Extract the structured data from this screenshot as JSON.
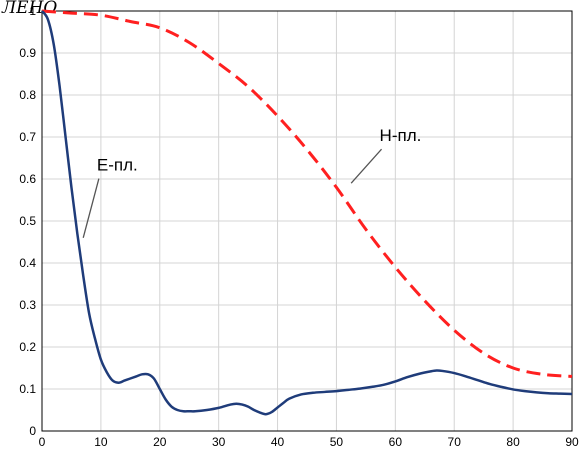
{
  "page_heading_fragment": "ЛЕНО",
  "chart_data": {
    "type": "line",
    "title": "",
    "xlabel": "",
    "ylabel": "",
    "xlim": [
      0,
      90
    ],
    "ylim": [
      0,
      1
    ],
    "xticks": [
      0,
      10,
      20,
      30,
      40,
      50,
      60,
      70,
      80,
      90
    ],
    "yticks": [
      0,
      0.1,
      0.2,
      0.3,
      0.4,
      0.5,
      0.6,
      0.7,
      0.8,
      0.9,
      1
    ],
    "ytick_labels": [
      "0",
      "0.1",
      "0.2",
      "0.3",
      "0.4",
      "0.5",
      "0.6",
      "0.7",
      "0.8",
      "0.9",
      "1"
    ],
    "grid": true,
    "legend": "none",
    "series": [
      {
        "name": "E-пл.",
        "color": "#1f3c7a",
        "style": "solid",
        "x": [
          0,
          1,
          2,
          3,
          4,
          5,
          6,
          7,
          8,
          9,
          10,
          11,
          12,
          13,
          14,
          15,
          16,
          17,
          18,
          19,
          20,
          21,
          22,
          23,
          24,
          25,
          26,
          28,
          30,
          32,
          33,
          34,
          35,
          36,
          37,
          38,
          39,
          40,
          41,
          42,
          44,
          46,
          48,
          50,
          52,
          54,
          56,
          58,
          60,
          62,
          64,
          66,
          67,
          68,
          70,
          72,
          74,
          76,
          78,
          80,
          82,
          84,
          86,
          88,
          90
        ],
        "values": [
          1.0,
          0.98,
          0.92,
          0.82,
          0.7,
          0.58,
          0.47,
          0.37,
          0.28,
          0.22,
          0.17,
          0.14,
          0.12,
          0.115,
          0.12,
          0.125,
          0.13,
          0.135,
          0.135,
          0.125,
          0.1,
          0.075,
          0.058,
          0.05,
          0.047,
          0.047,
          0.047,
          0.05,
          0.055,
          0.063,
          0.065,
          0.063,
          0.058,
          0.05,
          0.044,
          0.04,
          0.045,
          0.056,
          0.067,
          0.077,
          0.087,
          0.091,
          0.093,
          0.095,
          0.098,
          0.101,
          0.105,
          0.11,
          0.118,
          0.128,
          0.136,
          0.142,
          0.144,
          0.143,
          0.138,
          0.13,
          0.121,
          0.112,
          0.105,
          0.099,
          0.095,
          0.092,
          0.09,
          0.089,
          0.088
        ]
      },
      {
        "name": "H-пл.",
        "color": "#ff2020",
        "style": "dashed",
        "x": [
          0,
          5,
          10,
          15,
          20,
          25,
          30,
          35,
          40,
          45,
          50,
          55,
          60,
          65,
          70,
          75,
          80,
          85,
          90
        ],
        "values": [
          1.0,
          0.995,
          0.99,
          0.975,
          0.96,
          0.925,
          0.875,
          0.82,
          0.75,
          0.67,
          0.58,
          0.48,
          0.39,
          0.31,
          0.24,
          0.185,
          0.15,
          0.135,
          0.13
        ]
      }
    ],
    "annotations": [
      {
        "text": "E-пл.",
        "series": "E-пл.",
        "anchor": [
          7,
          0.46
        ],
        "label_at": [
          10,
          0.62
        ]
      },
      {
        "text": "H-пл.",
        "series": "H-пл.",
        "anchor": [
          52.5,
          0.59
        ],
        "label_at": [
          58,
          0.69
        ]
      }
    ]
  }
}
